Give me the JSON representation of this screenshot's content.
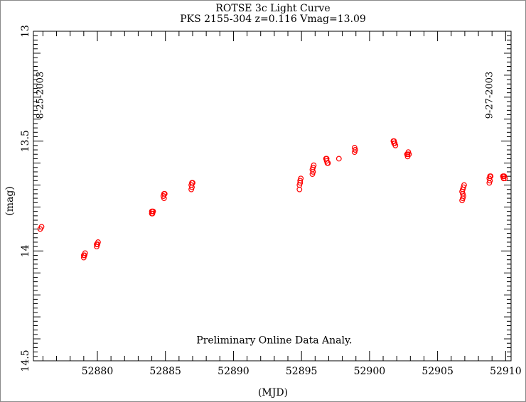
{
  "chart_data": {
    "type": "scatter",
    "title": "ROTSE 3c Light Curve",
    "subtitle": "PKS 2155-304 z=0.116 Vmag=13.09",
    "xlabel": "(MJD)",
    "ylabel": "(mag)",
    "xlim": [
      52875.3,
      52910.4
    ],
    "ylim": [
      13.0,
      14.5
    ],
    "y_inverted": true,
    "x_ticks": [
      52880,
      52885,
      52890,
      52895,
      52900,
      52905,
      52910
    ],
    "y_ticks": [
      "13",
      "13.5",
      "14",
      "14.5"
    ],
    "grid": false,
    "marker_color": "#ff0000",
    "annotations": [
      {
        "text": "8-25-2003",
        "x": 52875.8
      },
      {
        "text": "9-27-2003",
        "x": 52908.8
      },
      {
        "text": "Preliminary Online Data Analy.",
        "x": 52893
      }
    ],
    "x": [
      52875.8,
      52875.9,
      52879.0,
      52879.05,
      52879.1,
      52879.0,
      52879.05,
      52879.95,
      52880.0,
      52880.05,
      52879.95,
      52880.0,
      52884.0,
      52884.05,
      52884.0,
      52884.05,
      52884.1,
      52884.85,
      52884.9,
      52884.95,
      52884.9,
      52884.85,
      52886.9,
      52886.95,
      52887.0,
      52886.95,
      52886.9,
      52894.85,
      52894.9,
      52894.95,
      52894.85,
      52894.9,
      52895.8,
      52895.85,
      52895.9,
      52895.85,
      52895.8,
      52896.8,
      52896.85,
      52896.9,
      52896.95,
      52896.85,
      52897.75,
      52898.9,
      52898.95,
      52898.9,
      52898.95,
      52901.75,
      52901.8,
      52901.85,
      52901.9,
      52901.8,
      52902.75,
      52902.8,
      52902.85,
      52902.9,
      52902.8,
      52906.8,
      52906.85,
      52906.9,
      52906.95,
      52906.85,
      52906.9,
      52906.8,
      52906.85,
      52908.8,
      52908.85,
      52908.9,
      52908.85,
      52908.8,
      52909.8,
      52909.85,
      52909.9,
      52909.95,
      52909.85
    ],
    "y": [
      13.9,
      13.89,
      14.02,
      14.02,
      14.01,
      14.03,
      14.02,
      13.97,
      13.97,
      13.96,
      13.98,
      13.97,
      13.82,
      13.82,
      13.83,
      13.83,
      13.82,
      13.75,
      13.74,
      13.74,
      13.76,
      13.75,
      13.7,
      13.69,
      13.69,
      13.71,
      13.72,
      13.7,
      13.68,
      13.67,
      13.72,
      13.69,
      13.65,
      13.62,
      13.61,
      13.64,
      13.63,
      13.58,
      13.59,
      13.6,
      13.6,
      13.58,
      13.58,
      13.53,
      13.54,
      13.55,
      13.54,
      13.5,
      13.51,
      13.51,
      13.52,
      13.5,
      13.56,
      13.56,
      13.55,
      13.56,
      13.57,
      13.73,
      13.74,
      13.71,
      13.7,
      13.76,
      13.75,
      13.77,
      13.72,
      13.67,
      13.66,
      13.66,
      13.68,
      13.69,
      13.66,
      13.66,
      13.66,
      13.67,
      13.67
    ]
  }
}
